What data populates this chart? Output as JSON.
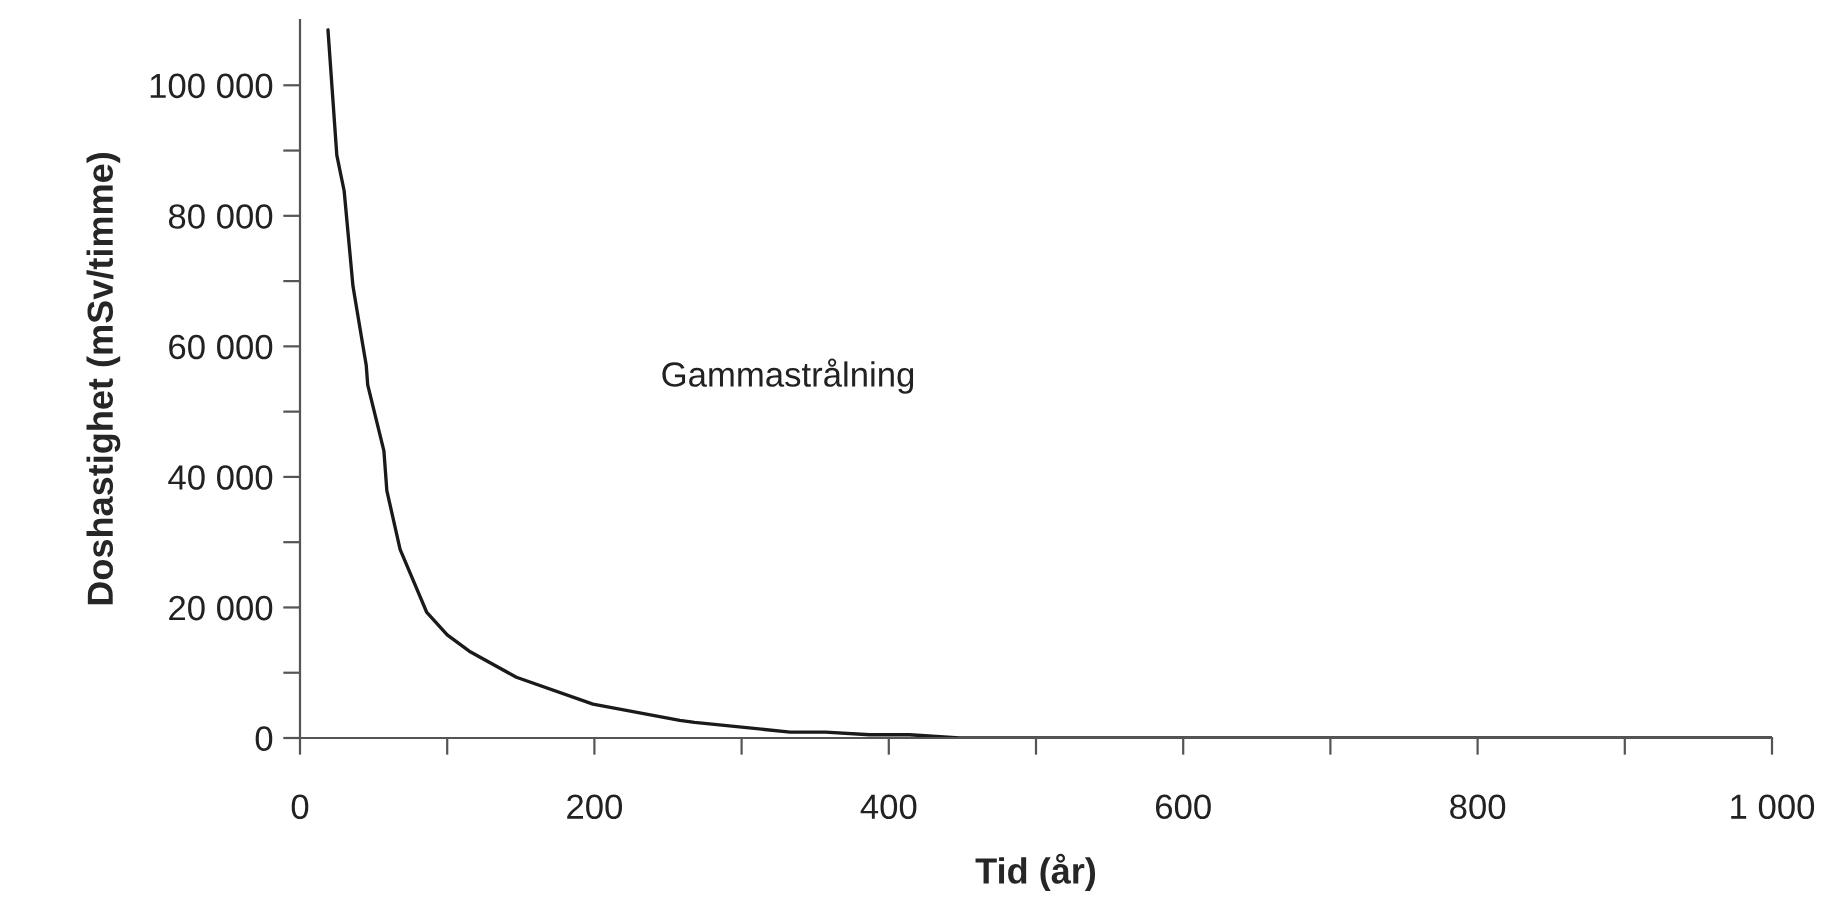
{
  "chart_data": {
    "type": "line",
    "xlabel": "Tid (år)",
    "ylabel": "Doshastighet (mSv/timme)",
    "annotations": [
      "Gammastrålning"
    ],
    "x": [
      19,
      25,
      30,
      36,
      42,
      45,
      46,
      57,
      59,
      68,
      86,
      100,
      115,
      147,
      199,
      258,
      268,
      333,
      357,
      387,
      414,
      448,
      600,
      800,
      1000
    ],
    "series": [
      {
        "color": "#1a1a1a",
        "values": [
          108500,
          89300,
          83800,
          69200,
          61100,
          57100,
          54100,
          44000,
          37900,
          28900,
          19300,
          15800,
          13300,
          9300,
          5200,
          2700,
          2400,
          900,
          900,
          500,
          500,
          0,
          0,
          0,
          0
        ]
      }
    ],
    "xlim": [
      0,
      1000
    ],
    "ylim": [
      0,
      110000
    ],
    "xticks": [
      0,
      200,
      400,
      600,
      800,
      {
        "value": 1000,
        "label": "1 000"
      }
    ],
    "yticks": [
      0,
      {
        "value": 20000,
        "label": "20 000"
      },
      {
        "value": 40000,
        "label": "40 000"
      },
      {
        "value": 60000,
        "label": "60 000"
      },
      {
        "value": 80000,
        "label": "80 000"
      },
      {
        "value": 100000,
        "label": "100 000"
      }
    ],
    "grid": false,
    "legend": false,
    "marker": "none",
    "line_style": "solid"
  }
}
